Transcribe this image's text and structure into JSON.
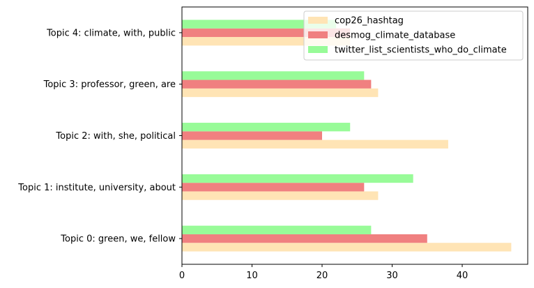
{
  "chart_data": {
    "type": "bar",
    "orientation": "horizontal",
    "categories": [
      "Topic 0: green, we, fellow",
      "Topic 1: institute, university, about",
      "Topic 2: with, she, political",
      "Topic 3: professor, green, are",
      "Topic 4: climate, with, public"
    ],
    "series": [
      {
        "name": "cop26_hashtag",
        "color": "#ffe4b5",
        "values": [
          47,
          28,
          38,
          28,
          24
        ]
      },
      {
        "name": "desmog_climate_database",
        "color": "#f08080",
        "values": [
          35,
          26,
          20,
          27,
          24
        ]
      },
      {
        "name": "twitter_list_scientists_who_do_climate",
        "color": "#98fb98",
        "values": [
          27,
          33,
          24,
          26,
          22
        ]
      }
    ],
    "xlim": [
      0,
      49.35
    ],
    "xticks": [
      0,
      10,
      20,
      30,
      40
    ],
    "title": "",
    "xlabel": "",
    "ylabel": "",
    "grid": false,
    "legend_position": "top-right"
  }
}
